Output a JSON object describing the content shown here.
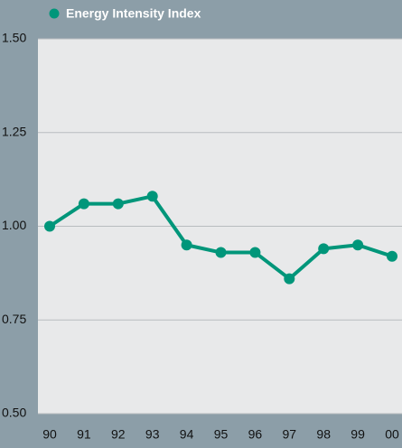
{
  "chart_data": {
    "type": "line",
    "categories": [
      "90",
      "91",
      "92",
      "93",
      "94",
      "95",
      "96",
      "97",
      "98",
      "99",
      "00"
    ],
    "series": [
      {
        "name": "Energy Intensity Index",
        "color": "#00967a",
        "values": [
          1.0,
          1.06,
          1.06,
          1.08,
          0.95,
          0.93,
          0.93,
          0.86,
          0.94,
          0.95,
          0.92
        ]
      }
    ],
    "ylim": [
      0.5,
      1.5
    ],
    "yticks": [
      {
        "value": 0.5,
        "label": "0.50"
      },
      {
        "value": 0.75,
        "label": "0.75"
      },
      {
        "value": 1.0,
        "label": "1.00"
      },
      {
        "value": 1.25,
        "label": "1.25"
      },
      {
        "value": 1.5,
        "label": "1.50"
      }
    ],
    "grid": true
  }
}
